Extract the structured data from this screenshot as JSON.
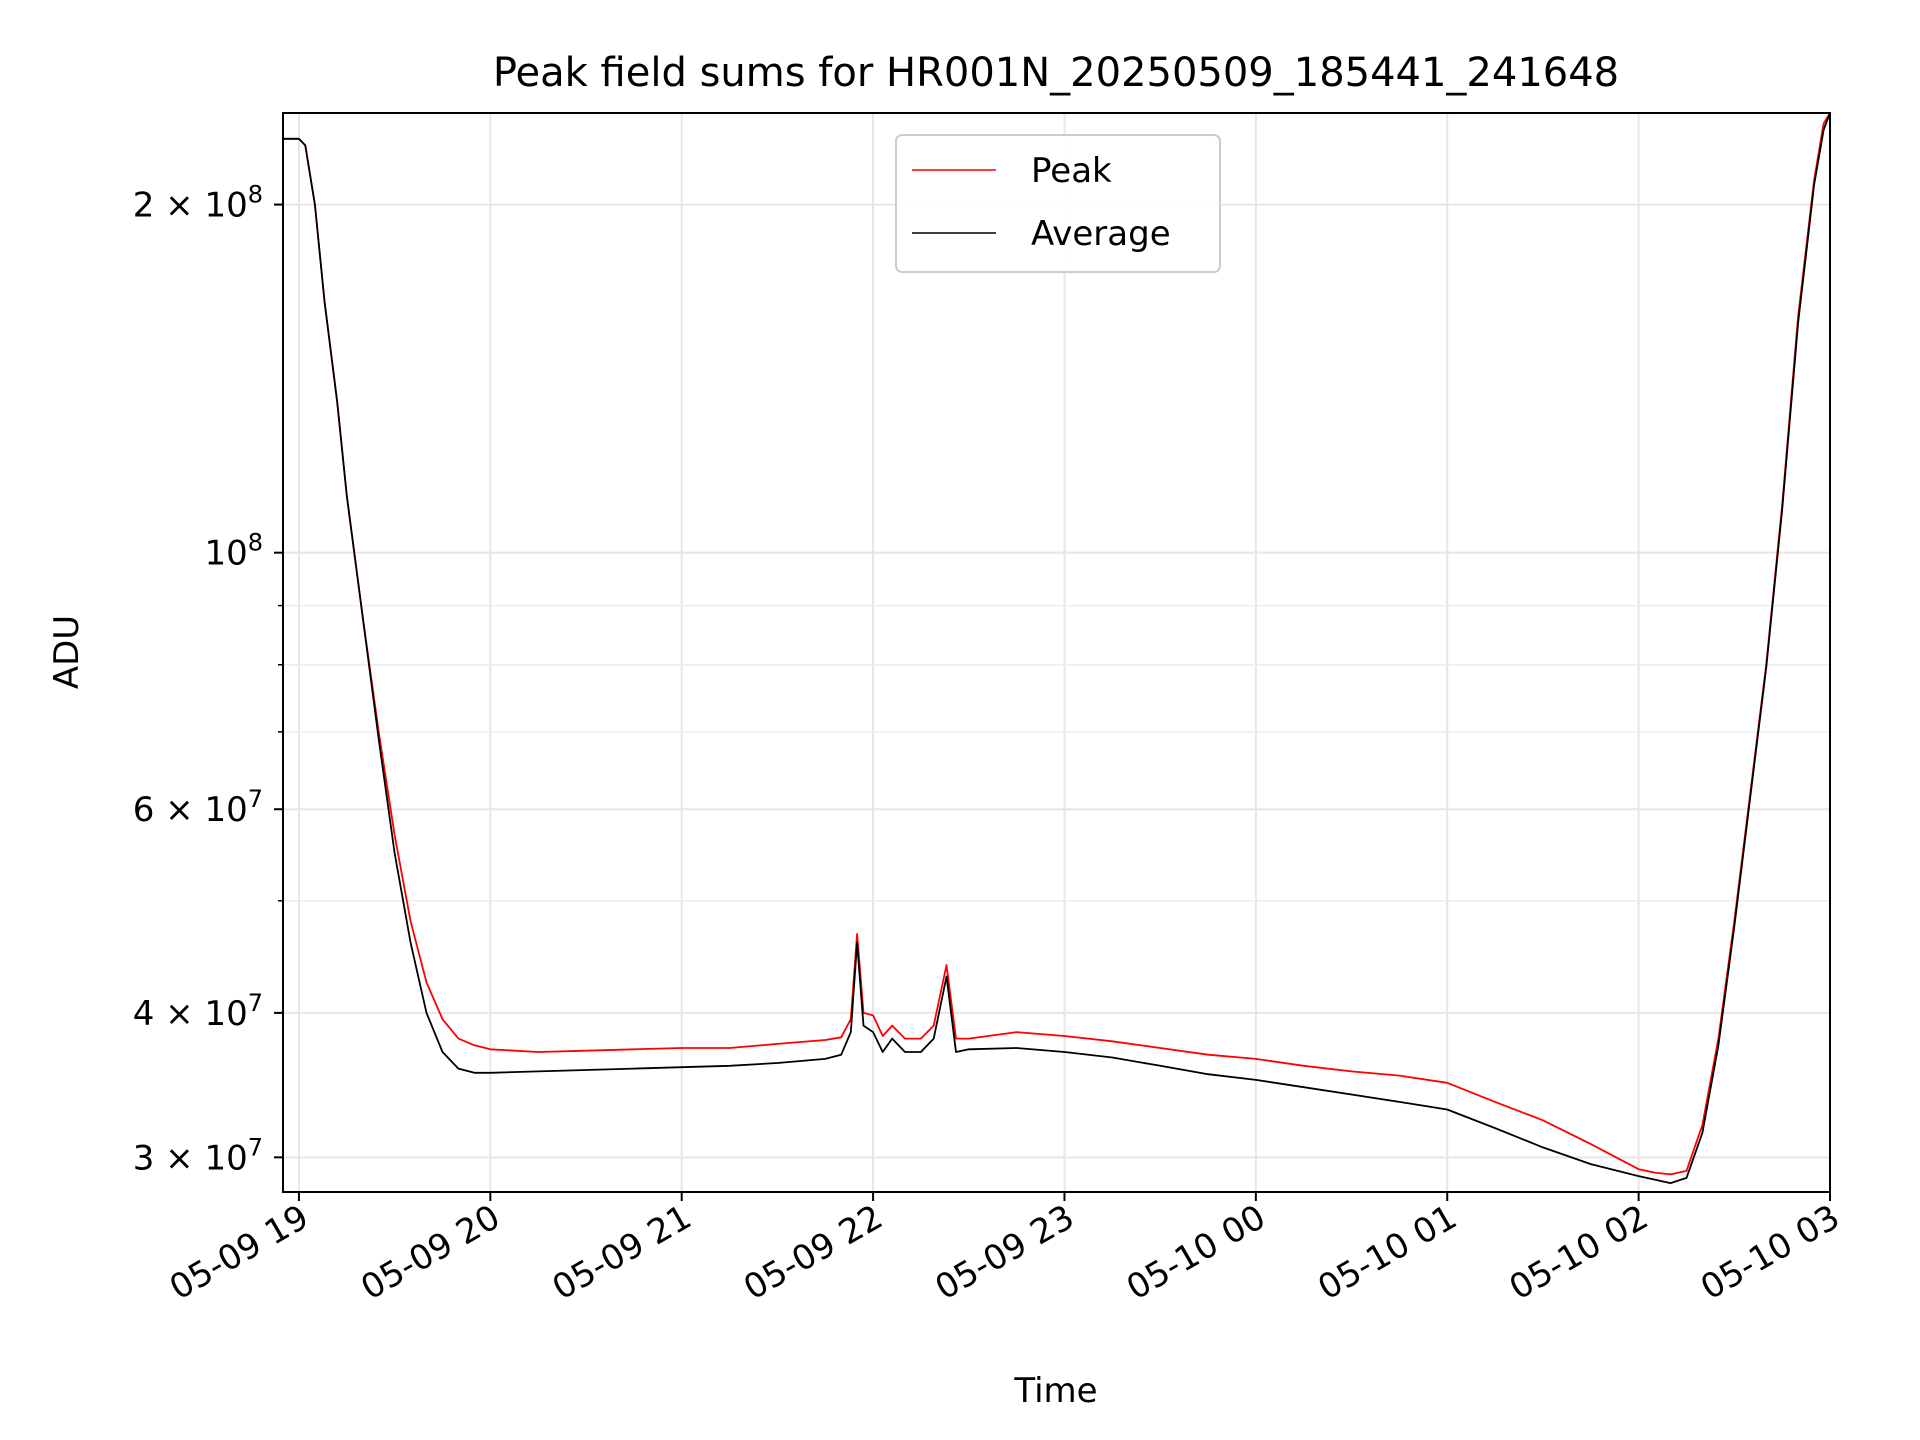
{
  "chart_data": {
    "type": "line",
    "title": "Peak field sums for HR001N_20250509_185441_241648",
    "xlabel": "Time",
    "ylabel": "ADU",
    "yscale": "log",
    "grid": true,
    "legend_position": "upper center",
    "xlim": [
      "2025-05-09 18:55",
      "2025-05-10 03:00"
    ],
    "ylim": [
      28000000,
      240000000
    ],
    "x_ticks": [
      "05-09 19",
      "05-09 20",
      "05-09 21",
      "05-09 22",
      "05-09 23",
      "05-10 00",
      "05-10 01",
      "05-10 02",
      "05-10 03"
    ],
    "y_ticks": [
      {
        "value": 30000000,
        "label": "3 × 10^7",
        "mantissa": "3",
        "exponent": "7"
      },
      {
        "value": 40000000,
        "label": "4 × 10^7",
        "mantissa": "4",
        "exponent": "7"
      },
      {
        "value": 60000000,
        "label": "6 × 10^7",
        "mantissa": "6",
        "exponent": "7"
      },
      {
        "value": 100000000,
        "label": "10^8",
        "mantissa": "",
        "exponent": "8"
      },
      {
        "value": 200000000,
        "label": "2 × 10^8",
        "mantissa": "2",
        "exponent": "8"
      }
    ],
    "series": [
      {
        "name": "Peak",
        "color": "#ff0000",
        "x": [
          "2025-05-09 18:55",
          "2025-05-09 19:00",
          "2025-05-09 19:02",
          "2025-05-09 19:05",
          "2025-05-09 19:08",
          "2025-05-09 19:12",
          "2025-05-09 19:15",
          "2025-05-09 19:20",
          "2025-05-09 19:25",
          "2025-05-09 19:30",
          "2025-05-09 19:35",
          "2025-05-09 19:40",
          "2025-05-09 19:45",
          "2025-05-09 19:50",
          "2025-05-09 19:55",
          "2025-05-09 20:00",
          "2025-05-09 20:15",
          "2025-05-09 20:30",
          "2025-05-09 20:45",
          "2025-05-09 21:00",
          "2025-05-09 21:15",
          "2025-05-09 21:30",
          "2025-05-09 21:45",
          "2025-05-09 21:50",
          "2025-05-09 21:53",
          "2025-05-09 21:55",
          "2025-05-09 21:57",
          "2025-05-09 22:00",
          "2025-05-09 22:03",
          "2025-05-09 22:06",
          "2025-05-09 22:10",
          "2025-05-09 22:15",
          "2025-05-09 22:19",
          "2025-05-09 22:23",
          "2025-05-09 22:26",
          "2025-05-09 22:30",
          "2025-05-09 22:45",
          "2025-05-09 23:00",
          "2025-05-09 23:15",
          "2025-05-09 23:30",
          "2025-05-09 23:45",
          "2025-05-10 00:00",
          "2025-05-10 00:15",
          "2025-05-10 00:30",
          "2025-05-10 00:45",
          "2025-05-10 01:00",
          "2025-05-10 01:15",
          "2025-05-10 01:30",
          "2025-05-10 01:45",
          "2025-05-10 02:00",
          "2025-05-10 02:05",
          "2025-05-10 02:10",
          "2025-05-10 02:15",
          "2025-05-10 02:20",
          "2025-05-10 02:25",
          "2025-05-10 02:30",
          "2025-05-10 02:35",
          "2025-05-10 02:40",
          "2025-05-10 02:45",
          "2025-05-10 02:50",
          "2025-05-10 02:55",
          "2025-05-10 02:58",
          "2025-05-10 03:00"
        ],
        "y": [
          228000000,
          228000000,
          225000000,
          200000000,
          165000000,
          135000000,
          112000000,
          88000000,
          70000000,
          57000000,
          48000000,
          42500000,
          39500000,
          38000000,
          37500000,
          37200000,
          37000000,
          37100000,
          37200000,
          37300000,
          37300000,
          37600000,
          37900000,
          38100000,
          39500000,
          46800000,
          40000000,
          39800000,
          38200000,
          39000000,
          38000000,
          38000000,
          39000000,
          44000000,
          38000000,
          38000000,
          38500000,
          38200000,
          37800000,
          37300000,
          36800000,
          36500000,
          36000000,
          35600000,
          35300000,
          34800000,
          33500000,
          32300000,
          30800000,
          29300000,
          29100000,
          29000000,
          29200000,
          32000000,
          38000000,
          48000000,
          62000000,
          80000000,
          110000000,
          160000000,
          210000000,
          235000000,
          240000000
        ]
      },
      {
        "name": "Average",
        "color": "#000000",
        "x": [
          "2025-05-09 18:55",
          "2025-05-09 19:00",
          "2025-05-09 19:02",
          "2025-05-09 19:05",
          "2025-05-09 19:08",
          "2025-05-09 19:12",
          "2025-05-09 19:15",
          "2025-05-09 19:20",
          "2025-05-09 19:25",
          "2025-05-09 19:30",
          "2025-05-09 19:35",
          "2025-05-09 19:40",
          "2025-05-09 19:45",
          "2025-05-09 19:50",
          "2025-05-09 19:55",
          "2025-05-09 20:00",
          "2025-05-09 20:15",
          "2025-05-09 20:30",
          "2025-05-09 20:45",
          "2025-05-09 21:00",
          "2025-05-09 21:15",
          "2025-05-09 21:30",
          "2025-05-09 21:45",
          "2025-05-09 21:50",
          "2025-05-09 21:53",
          "2025-05-09 21:55",
          "2025-05-09 21:57",
          "2025-05-09 22:00",
          "2025-05-09 22:03",
          "2025-05-09 22:06",
          "2025-05-09 22:10",
          "2025-05-09 22:15",
          "2025-05-09 22:19",
          "2025-05-09 22:23",
          "2025-05-09 22:26",
          "2025-05-09 22:30",
          "2025-05-09 22:45",
          "2025-05-09 23:00",
          "2025-05-09 23:15",
          "2025-05-09 23:30",
          "2025-05-09 23:45",
          "2025-05-10 00:00",
          "2025-05-10 00:15",
          "2025-05-10 00:30",
          "2025-05-10 00:45",
          "2025-05-10 01:00",
          "2025-05-10 01:15",
          "2025-05-10 01:30",
          "2025-05-10 01:45",
          "2025-05-10 02:00",
          "2025-05-10 02:05",
          "2025-05-10 02:10",
          "2025-05-10 02:15",
          "2025-05-10 02:20",
          "2025-05-10 02:25",
          "2025-05-10 02:30",
          "2025-05-10 02:35",
          "2025-05-10 02:40",
          "2025-05-10 02:45",
          "2025-05-10 02:50",
          "2025-05-10 02:55",
          "2025-05-10 02:58",
          "2025-05-10 03:00"
        ],
        "y": [
          228000000,
          228000000,
          225000000,
          200000000,
          165000000,
          135000000,
          112000000,
          88000000,
          69000000,
          55000000,
          46000000,
          40000000,
          37000000,
          35800000,
          35500000,
          35500000,
          35600000,
          35700000,
          35800000,
          35900000,
          36000000,
          36200000,
          36500000,
          36800000,
          38500000,
          46000000,
          39000000,
          38500000,
          37000000,
          38000000,
          37000000,
          37000000,
          38000000,
          43000000,
          37000000,
          37200000,
          37300000,
          37000000,
          36600000,
          36000000,
          35400000,
          35000000,
          34500000,
          34000000,
          33500000,
          33000000,
          31800000,
          30600000,
          29600000,
          28900000,
          28700000,
          28500000,
          28800000,
          31500000,
          37500000,
          47500000,
          61500000,
          79500000,
          109000000,
          158000000,
          208000000,
          232000000,
          240000000
        ]
      }
    ]
  }
}
